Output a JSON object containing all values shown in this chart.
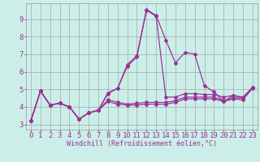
{
  "bg_color": "#cceee8",
  "grid_color": "#999999",
  "line_color": "#993399",
  "marker": "D",
  "marker_size": 2.0,
  "linewidth": 0.9,
  "xlabel": "Windchill (Refroidissement éolien,°C)",
  "xlabel_fontsize": 6.0,
  "xlim": [
    -0.5,
    23.5
  ],
  "ylim": [
    2.7,
    9.9
  ],
  "xtick_labels": [
    "0",
    "1",
    "2",
    "3",
    "4",
    "5",
    "6",
    "7",
    "8",
    "9",
    "10",
    "11",
    "12",
    "13",
    "14",
    "15",
    "16",
    "17",
    "18",
    "19",
    "20",
    "21",
    "22",
    "23"
  ],
  "ytick_labels": [
    "3",
    "4",
    "5",
    "6",
    "7",
    "8",
    "9"
  ],
  "ytick_vals": [
    3,
    4,
    5,
    6,
    7,
    8,
    9
  ],
  "tick_fontsize": 6.5,
  "series": [
    [
      3.2,
      4.9,
      4.1,
      4.2,
      4.0,
      3.3,
      3.65,
      3.8,
      4.8,
      5.05,
      6.4,
      6.9,
      9.55,
      9.2,
      7.8,
      6.5,
      7.1,
      7.0,
      5.2,
      4.85,
      4.3,
      4.65,
      4.5,
      5.1
    ],
    [
      3.2,
      4.9,
      4.1,
      4.2,
      4.0,
      3.3,
      3.65,
      3.8,
      4.75,
      5.05,
      6.3,
      6.85,
      9.5,
      9.15,
      4.55,
      4.55,
      4.75,
      4.75,
      4.7,
      4.7,
      4.55,
      4.65,
      4.55,
      5.1
    ],
    [
      3.2,
      4.9,
      4.1,
      4.2,
      4.0,
      3.3,
      3.65,
      3.8,
      4.4,
      4.25,
      4.15,
      4.2,
      4.25,
      4.25,
      4.25,
      4.35,
      4.55,
      4.55,
      4.55,
      4.55,
      4.35,
      4.5,
      4.5,
      5.1
    ],
    [
      3.2,
      4.9,
      4.1,
      4.2,
      4.0,
      3.3,
      3.65,
      3.8,
      4.3,
      4.15,
      4.1,
      4.1,
      4.15,
      4.15,
      4.15,
      4.25,
      4.45,
      4.45,
      4.45,
      4.45,
      4.3,
      4.45,
      4.4,
      5.05
    ]
  ]
}
